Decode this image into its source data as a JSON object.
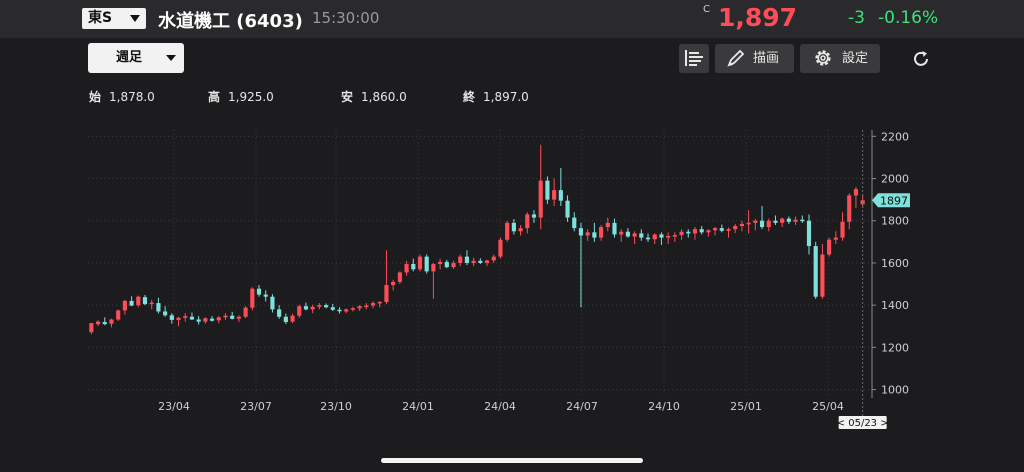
{
  "header": {
    "market": "東S",
    "stock_name": "水道機工 (6403)",
    "time": "15:30:00",
    "price_mark": "C",
    "price": "1,897",
    "change": "-3",
    "change_pct": "-0.16%"
  },
  "toolbar": {
    "period": "週足",
    "draw_label": "描画",
    "settings_label": "設定"
  },
  "ohlc": {
    "open_label": "始",
    "open": "1,878.0",
    "high_label": "高",
    "high": "1,925.0",
    "low_label": "安",
    "low": "1,860.0",
    "close_label": "終",
    "close": "1,897.0"
  },
  "colors": {
    "up": "#ff4d57",
    "down": "#7fe0dc",
    "accent_change": "#3ee07a"
  },
  "chart_data": {
    "type": "candlestick",
    "x_ticks": [
      "23/04",
      "23/07",
      "23/10",
      "24/01",
      "24/04",
      "24/07",
      "24/10",
      "25/01",
      "25/04"
    ],
    "y_ticks": [
      1000,
      1200,
      1400,
      1600,
      1800,
      2000,
      2200
    ],
    "ylim": [
      960,
      2230
    ],
    "last_price_label": "1897",
    "cursor_label": "< 05/23 >",
    "grid": true,
    "candles": [
      [
        1272,
        1316,
        1262,
        1315
      ],
      [
        1310,
        1328,
        1300,
        1322
      ],
      [
        1320,
        1342,
        1305,
        1310
      ],
      [
        1312,
        1336,
        1295,
        1332
      ],
      [
        1332,
        1380,
        1325,
        1375
      ],
      [
        1375,
        1425,
        1355,
        1420
      ],
      [
        1420,
        1442,
        1395,
        1398
      ],
      [
        1400,
        1445,
        1390,
        1440
      ],
      [
        1438,
        1448,
        1400,
        1405
      ],
      [
        1405,
        1425,
        1380,
        1412
      ],
      [
        1410,
        1435,
        1360,
        1370
      ],
      [
        1370,
        1395,
        1345,
        1352
      ],
      [
        1352,
        1362,
        1312,
        1330
      ],
      [
        1330,
        1345,
        1300,
        1340
      ],
      [
        1340,
        1362,
        1322,
        1348
      ],
      [
        1345,
        1365,
        1330,
        1332
      ],
      [
        1332,
        1348,
        1308,
        1322
      ],
      [
        1322,
        1342,
        1312,
        1338
      ],
      [
        1336,
        1348,
        1322,
        1326
      ],
      [
        1328,
        1348,
        1314,
        1342
      ],
      [
        1342,
        1362,
        1330,
        1350
      ],
      [
        1350,
        1368,
        1332,
        1335
      ],
      [
        1336,
        1352,
        1320,
        1345
      ],
      [
        1345,
        1395,
        1338,
        1388
      ],
      [
        1388,
        1485,
        1375,
        1478
      ],
      [
        1478,
        1495,
        1440,
        1450
      ],
      [
        1450,
        1470,
        1418,
        1440
      ],
      [
        1440,
        1452,
        1365,
        1380
      ],
      [
        1380,
        1400,
        1335,
        1345
      ],
      [
        1345,
        1360,
        1310,
        1320
      ],
      [
        1322,
        1360,
        1315,
        1350
      ],
      [
        1350,
        1402,
        1340,
        1395
      ],
      [
        1395,
        1412,
        1375,
        1380
      ],
      [
        1380,
        1402,
        1362,
        1392
      ],
      [
        1392,
        1410,
        1380,
        1400
      ],
      [
        1400,
        1408,
        1385,
        1390
      ],
      [
        1390,
        1406,
        1372,
        1378
      ],
      [
        1378,
        1390,
        1360,
        1372
      ],
      [
        1370,
        1385,
        1362,
        1380
      ],
      [
        1380,
        1392,
        1370,
        1385
      ],
      [
        1385,
        1400,
        1372,
        1395
      ],
      [
        1395,
        1410,
        1380,
        1398
      ],
      [
        1398,
        1418,
        1385,
        1410
      ],
      [
        1410,
        1420,
        1390,
        1415
      ],
      [
        1415,
        1660,
        1405,
        1495
      ],
      [
        1495,
        1520,
        1470,
        1510
      ],
      [
        1510,
        1560,
        1500,
        1555
      ],
      [
        1555,
        1610,
        1540,
        1595
      ],
      [
        1595,
        1620,
        1560,
        1570
      ],
      [
        1570,
        1640,
        1560,
        1630
      ],
      [
        1630,
        1640,
        1550,
        1560
      ],
      [
        1560,
        1600,
        1430,
        1595
      ],
      [
        1595,
        1620,
        1570,
        1605
      ],
      [
        1605,
        1615,
        1575,
        1580
      ],
      [
        1580,
        1610,
        1572,
        1600
      ],
      [
        1600,
        1640,
        1585,
        1630
      ],
      [
        1630,
        1660,
        1590,
        1600
      ],
      [
        1600,
        1625,
        1585,
        1610
      ],
      [
        1610,
        1622,
        1595,
        1600
      ],
      [
        1600,
        1615,
        1585,
        1612
      ],
      [
        1612,
        1640,
        1600,
        1630
      ],
      [
        1630,
        1720,
        1622,
        1710
      ],
      [
        1710,
        1800,
        1700,
        1790
      ],
      [
        1790,
        1808,
        1735,
        1750
      ],
      [
        1750,
        1780,
        1730,
        1765
      ],
      [
        1765,
        1840,
        1740,
        1830
      ],
      [
        1830,
        1850,
        1790,
        1815
      ],
      [
        1815,
        2160,
        1760,
        1990
      ],
      [
        1990,
        2010,
        1880,
        1900
      ],
      [
        1900,
        2000,
        1870,
        1945
      ],
      [
        1945,
        2050,
        1870,
        1895
      ],
      [
        1895,
        1920,
        1795,
        1815
      ],
      [
        1815,
        1840,
        1750,
        1765
      ],
      [
        1765,
        1790,
        1390,
        1730
      ],
      [
        1730,
        1760,
        1705,
        1745
      ],
      [
        1745,
        1790,
        1700,
        1720
      ],
      [
        1720,
        1780,
        1705,
        1770
      ],
      [
        1770,
        1815,
        1750,
        1790
      ],
      [
        1790,
        1810,
        1720,
        1735
      ],
      [
        1735,
        1760,
        1700,
        1748
      ],
      [
        1748,
        1765,
        1720,
        1725
      ],
      [
        1725,
        1750,
        1690,
        1740
      ],
      [
        1740,
        1760,
        1705,
        1720
      ],
      [
        1720,
        1740,
        1700,
        1712
      ],
      [
        1712,
        1740,
        1690,
        1735
      ],
      [
        1735,
        1745,
        1685,
        1720
      ],
      [
        1720,
        1745,
        1690,
        1728
      ],
      [
        1728,
        1745,
        1700,
        1732
      ],
      [
        1732,
        1760,
        1710,
        1748
      ],
      [
        1748,
        1760,
        1720,
        1740
      ],
      [
        1740,
        1770,
        1710,
        1760
      ],
      [
        1760,
        1775,
        1735,
        1745
      ],
      [
        1745,
        1760,
        1725,
        1755
      ],
      [
        1755,
        1770,
        1730,
        1765
      ],
      [
        1765,
        1782,
        1745,
        1752
      ],
      [
        1752,
        1768,
        1720,
        1760
      ],
      [
        1760,
        1785,
        1742,
        1775
      ],
      [
        1775,
        1800,
        1750,
        1785
      ],
      [
        1785,
        1850,
        1740,
        1790
      ],
      [
        1790,
        1808,
        1755,
        1800
      ],
      [
        1800,
        1870,
        1760,
        1770
      ],
      [
        1770,
        1810,
        1750,
        1800
      ],
      [
        1800,
        1825,
        1780,
        1790
      ],
      [
        1790,
        1815,
        1770,
        1810
      ],
      [
        1810,
        1820,
        1785,
        1795
      ],
      [
        1795,
        1820,
        1780,
        1805
      ],
      [
        1805,
        1825,
        1790,
        1800
      ],
      [
        1800,
        1830,
        1640,
        1680
      ],
      [
        1680,
        1700,
        1430,
        1440
      ],
      [
        1440,
        1690,
        1430,
        1640
      ],
      [
        1640,
        1720,
        1630,
        1710
      ],
      [
        1710,
        1750,
        1690,
        1720
      ],
      [
        1720,
        1840,
        1705,
        1795
      ],
      [
        1795,
        1930,
        1760,
        1920
      ],
      [
        1920,
        1960,
        1860,
        1950
      ],
      [
        1878,
        1925,
        1860,
        1897
      ]
    ]
  }
}
